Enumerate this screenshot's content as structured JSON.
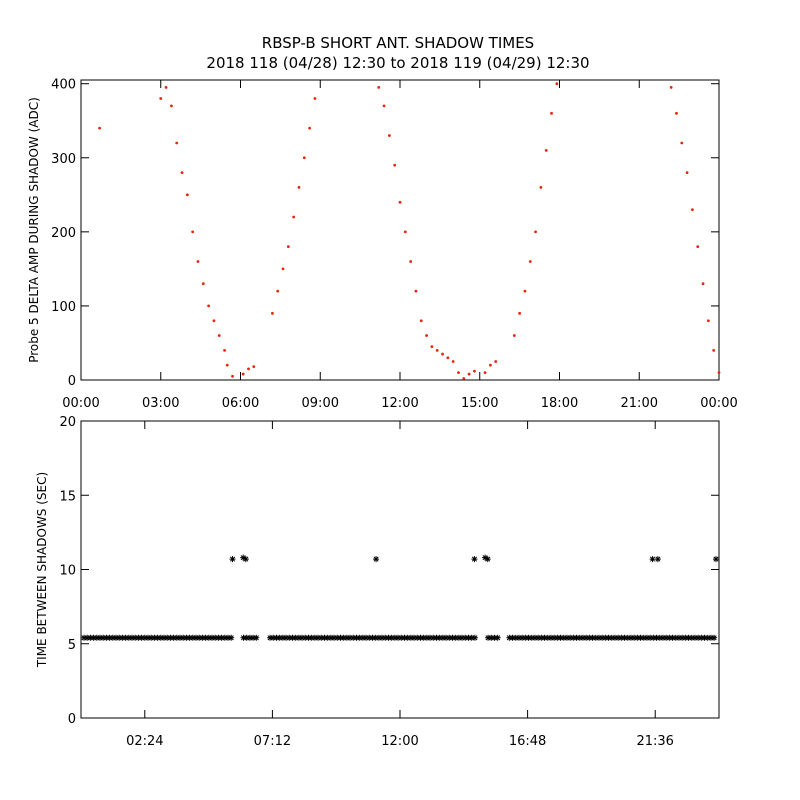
{
  "title_line1": "RBSP-B SHORT ANT. SHADOW TIMES",
  "title_line2": "2018 118 (04/28) 12:30 to 2018 119 (04/29) 12:30",
  "colors": {
    "top_points": "#e8250c",
    "bottom_points": "#000000",
    "axes": "#000000"
  },
  "chart_data": [
    {
      "type": "scatter",
      "ylabel": "Probe 5 DELTA AMP DURING SHADOW (ADC)",
      "xlim": [
        0,
        24
      ],
      "ylim": [
        0,
        405
      ],
      "x_ticks": [
        0,
        3,
        6,
        9,
        12,
        15,
        18,
        21,
        24
      ],
      "x_tick_labels": [
        "00:00",
        "03:00",
        "06:00",
        "09:00",
        "12:00",
        "15:00",
        "18:00",
        "21:00",
        "00:00"
      ],
      "y_ticks": [
        0,
        100,
        200,
        300,
        400
      ],
      "y_tick_labels": [
        "0",
        "100",
        "200",
        "300",
        "400"
      ],
      "marker": "dot",
      "color": "#e8250c",
      "series": [
        {
          "x": [
            0.7,
            3.0,
            3.2,
            3.4,
            3.6,
            3.8,
            4.0,
            4.2,
            4.4,
            4.6,
            4.8,
            5.0,
            5.2,
            5.4,
            5.5,
            5.7,
            6.1,
            6.3,
            6.5,
            7.2,
            7.4,
            7.6,
            7.8,
            8.0,
            8.2,
            8.4,
            8.6,
            8.8,
            11.2,
            11.4,
            11.6,
            11.8,
            12.0,
            12.2,
            12.4,
            12.6,
            12.8,
            13.0,
            13.2,
            13.4,
            13.6,
            13.8,
            14.0,
            14.2,
            14.4,
            14.6,
            14.8,
            15.2,
            15.4,
            15.6,
            16.3,
            16.5,
            16.7,
            16.9,
            17.1,
            17.3,
            17.5,
            17.7,
            17.9,
            22.2,
            22.4,
            22.6,
            22.8,
            23.0,
            23.2,
            23.4,
            23.6,
            23.8,
            24.0
          ],
          "y": [
            340,
            380,
            395,
            370,
            320,
            280,
            250,
            200,
            160,
            130,
            100,
            80,
            60,
            40,
            20,
            5,
            8,
            15,
            18,
            90,
            120,
            150,
            180,
            220,
            260,
            300,
            340,
            380,
            395,
            370,
            330,
            290,
            240,
            200,
            160,
            120,
            80,
            60,
            45,
            40,
            35,
            30,
            25,
            10,
            2,
            8,
            12,
            10,
            20,
            25,
            60,
            90,
            120,
            160,
            200,
            260,
            310,
            360,
            400,
            395,
            360,
            320,
            280,
            230,
            180,
            130,
            80,
            40,
            10
          ]
        }
      ]
    },
    {
      "type": "scatter",
      "ylabel": "TIME BETWEEN SHADOWS (SEC)",
      "xlim": [
        0,
        24
      ],
      "ylim": [
        0,
        20
      ],
      "x_ticks": [
        2.4,
        7.2,
        12.0,
        16.8,
        21.6
      ],
      "x_tick_labels": [
        "02:24",
        "07:12",
        "12:00",
        "16:48",
        "21:36"
      ],
      "y_ticks": [
        0,
        5,
        10,
        15,
        20
      ],
      "y_tick_labels": [
        "0",
        "5",
        "10",
        "15",
        "20"
      ],
      "marker": "asterisk",
      "color": "#000000",
      "series": [
        {
          "x": [
            5.7,
            6.1,
            6.2,
            11.1,
            14.8,
            15.2,
            15.3,
            21.5,
            21.7,
            24.0
          ],
          "y": [
            10.7,
            10.8,
            10.7,
            10.7,
            10.7,
            10.8,
            10.7,
            10.7,
            10.7,
            10.7
          ]
        },
        {
          "x_ranges": [
            [
              0.0,
              5.7
            ],
            [
              6.0,
              6.6
            ],
            [
              7.0,
              14.9
            ],
            [
              15.2,
              15.7
            ],
            [
              16.0,
              24.0
            ]
          ],
          "y": 5.4
        }
      ]
    }
  ]
}
